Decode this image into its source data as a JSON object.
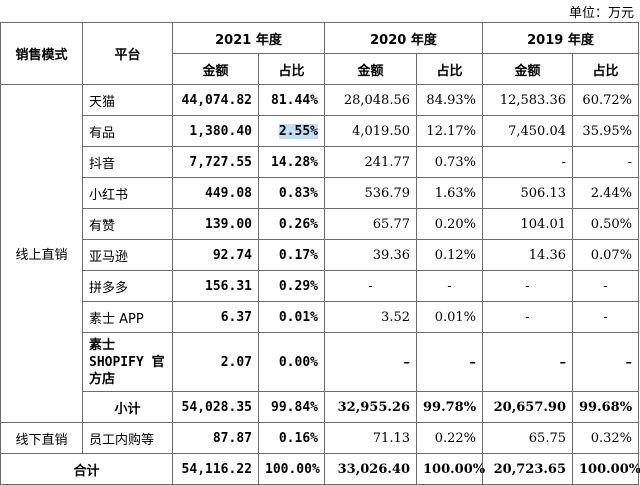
{
  "unit": "单位：万元",
  "headers": {
    "sales_mode": "销售模式",
    "platform": "平台",
    "years": [
      "2021 年度",
      "2020 年度",
      "2019 年度"
    ],
    "amount": "金额",
    "ratio": "占比"
  },
  "groups": {
    "online": "线上直销",
    "offline": "线下直销",
    "total": "合计"
  },
  "rows": [
    {
      "platform": "天猫",
      "v2021": "44,074.82",
      "r2021": "81.44%",
      "v2020": "28,048.56",
      "r2020": "84.93%",
      "v2019": "12,583.36",
      "r2019": "60.72%"
    },
    {
      "platform": "有品",
      "v2021": "1,380.40",
      "r2021": "2.55%",
      "v2020": "4,019.50",
      "r2020": "12.17%",
      "v2019": "7,450.04",
      "r2019": "35.95%"
    },
    {
      "platform": "抖音",
      "v2021": "7,727.55",
      "r2021": "14.28%",
      "v2020": "241.77",
      "r2020": "0.73%",
      "v2019": "-",
      "r2019": "-"
    },
    {
      "platform": "小红书",
      "v2021": "449.08",
      "r2021": "0.83%",
      "v2020": "536.79",
      "r2020": "1.63%",
      "v2019": "506.13",
      "r2019": "2.44%"
    },
    {
      "platform": "有赞",
      "v2021": "139.00",
      "r2021": "0.26%",
      "v2020": "65.77",
      "r2020": "0.20%",
      "v2019": "104.01",
      "r2019": "0.50%"
    },
    {
      "platform": "亚马逊",
      "v2021": "92.74",
      "r2021": "0.17%",
      "v2020": "39.36",
      "r2020": "0.12%",
      "v2019": "14.36",
      "r2019": "0.07%"
    },
    {
      "platform": "拼多多",
      "v2021": "156.31",
      "r2021": "0.29%",
      "v2020": "-",
      "r2020": "-",
      "v2019": "-",
      "r2019": "-"
    },
    {
      "platform": "素士 APP",
      "v2021": "6.37",
      "r2021": "0.01%",
      "v2020": "3.52",
      "r2020": "0.01%",
      "v2019": "-",
      "r2019": "-"
    },
    {
      "platform": "素士 SHOPIFY 官方店",
      "v2021": "2.07",
      "r2021": "0.00%",
      "v2020": "–",
      "r2020": "–",
      "v2019": "–",
      "r2019": "–"
    }
  ],
  "subtotal": {
    "label": "小计",
    "v2021": "54,028.35",
    "r2021": "99.84%",
    "v2020": "32,955.26",
    "r2020": "99.78%",
    "v2019": "20,657.90",
    "r2019": "99.68%"
  },
  "offline_row": {
    "platform": "员工内购等",
    "v2021": "87.87",
    "r2021": "0.16%",
    "v2020": "71.13",
    "r2020": "0.22%",
    "v2019": "65.75",
    "r2019": "0.32%"
  },
  "total": {
    "v2021": "54,116.22",
    "r2021": "100.00%",
    "v2020": "33,026.40",
    "r2020": "100.00%",
    "v2019": "20,723.65",
    "r2019": "100.00%"
  }
}
